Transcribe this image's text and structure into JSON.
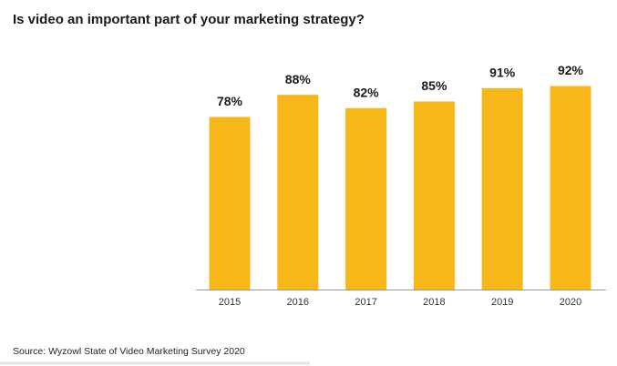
{
  "chart_data": {
    "type": "bar",
    "title": "Is video an important part of your marketing strategy?",
    "categories": [
      "2015",
      "2016",
      "2017",
      "2018",
      "2019",
      "2020"
    ],
    "values": [
      78,
      88,
      82,
      85,
      91,
      92
    ],
    "value_labels": [
      "78%",
      "88%",
      "82%",
      "85%",
      "91%",
      "92%"
    ],
    "color": "#f7b718",
    "source": "Source: Wyzowl State of Video Marketing Survey 2020"
  }
}
